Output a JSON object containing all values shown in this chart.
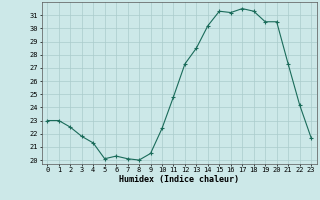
{
  "x": [
    0,
    1,
    2,
    3,
    4,
    5,
    6,
    7,
    8,
    9,
    10,
    11,
    12,
    13,
    14,
    15,
    16,
    17,
    18,
    19,
    20,
    21,
    22,
    23
  ],
  "y": [
    23,
    23,
    22.5,
    21.8,
    21.3,
    20.1,
    20.3,
    20.1,
    20.0,
    20.5,
    22.4,
    24.8,
    27.3,
    28.5,
    30.2,
    31.3,
    31.2,
    31.5,
    31.3,
    30.5,
    30.5,
    27.3,
    24.2,
    21.7
  ],
  "line_color": "#1a6b5a",
  "marker": "+",
  "marker_size": 3,
  "marker_lw": 0.8,
  "line_width": 0.8,
  "bg_color": "#cce8e8",
  "grid_color": "#aacccc",
  "xlabel": "Humidex (Indice chaleur)",
  "ylabel_ticks": [
    20,
    21,
    22,
    23,
    24,
    25,
    26,
    27,
    28,
    29,
    30,
    31
  ],
  "ylim": [
    19.7,
    32.0
  ],
  "xlim": [
    -0.5,
    23.5
  ],
  "tick_fontsize": 5.0,
  "xlabel_fontsize": 6.0
}
